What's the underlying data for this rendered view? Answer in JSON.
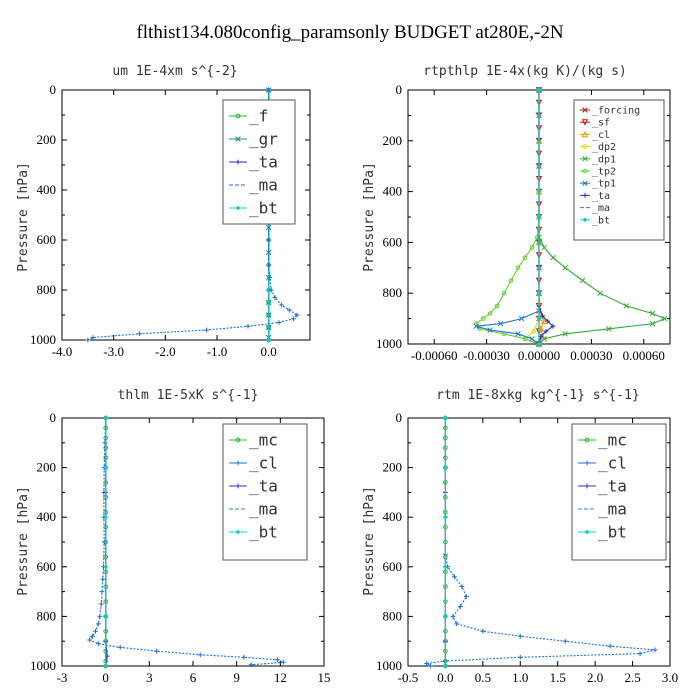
{
  "figure_title": "flthist134.080config_paramsonly  BUDGET at280E,-2N",
  "ylabel": "Pressure [hPa]",
  "chart_data": [
    {
      "type": "line",
      "title": "um  1E-4xm s^{-2}",
      "xlim": [
        -4.0,
        0.8
      ],
      "xticks": [
        -4.0,
        -3.0,
        -2.0,
        -1.0,
        0.0
      ],
      "xtick_labels": [
        "-4.0",
        "-3.0",
        "-2.0",
        "-1.0",
        "0.0"
      ],
      "ylim": [
        0,
        1000
      ],
      "yticks": [
        0,
        200,
        400,
        600,
        800,
        1000
      ],
      "legend": {
        "position": "top-right",
        "size": "large"
      },
      "series": [
        {
          "name": "_f",
          "color": "#22bb22",
          "marker": "o",
          "p": [
            0,
            50,
            100,
            150,
            200,
            300,
            400,
            500,
            600,
            700,
            800,
            850,
            900,
            950,
            1000
          ],
          "x": [
            0,
            0,
            0,
            0,
            0,
            0,
            0,
            0,
            0,
            0,
            0,
            0,
            0,
            0,
            0
          ]
        },
        {
          "name": "_gr",
          "color": "#228888",
          "marker": "x",
          "p": [
            0,
            60,
            120,
            180,
            250,
            350,
            450,
            550,
            650,
            750,
            850,
            900,
            950,
            990
          ],
          "x": [
            0,
            0,
            0.02,
            0.02,
            0.01,
            0,
            0,
            0,
            0,
            0,
            0,
            0,
            0,
            0
          ]
        },
        {
          "name": "_ta",
          "color": "#2222cc",
          "marker": "+",
          "p": [
            0,
            200,
            400,
            600,
            800,
            1000
          ],
          "x": [
            0,
            0,
            0,
            0,
            0,
            0
          ]
        },
        {
          "name": "_ma",
          "color": "#2266dd",
          "marker": "-",
          "p": [
            0,
            200,
            400,
            600,
            800,
            1000
          ],
          "x": [
            0,
            0,
            0,
            0,
            0,
            0
          ]
        },
        {
          "name": "_bt",
          "color": "#11cccc",
          "marker": "d",
          "p": [
            0,
            200,
            400,
            600,
            800,
            1000
          ],
          "x": [
            0,
            0,
            0,
            0,
            0,
            0
          ]
        },
        {
          "name": "",
          "color": "#1e6fd9",
          "marker": "+",
          "p": [
            0,
            100,
            200,
            300,
            400,
            500,
            600,
            700,
            750,
            800,
            830,
            860,
            880,
            900,
            915,
            930,
            945,
            960,
            975,
            990,
            1000
          ],
          "x": [
            0,
            0.02,
            0.01,
            0,
            0,
            0,
            0,
            0,
            0.02,
            0.05,
            0.12,
            0.25,
            0.4,
            0.55,
            0.48,
            0.2,
            -0.4,
            -1.2,
            -2.5,
            -3.4,
            -3.5
          ]
        }
      ]
    },
    {
      "type": "line",
      "title": "rtpthlp  1E-4x(kg K)/(kg s)",
      "xlim": [
        -0.00075,
        0.00075
      ],
      "xticks": [
        -0.0006,
        -0.0003,
        0.0,
        0.0003,
        0.0006
      ],
      "xtick_labels": [
        "-0.00060",
        "-0.00030",
        "0.00000",
        "0.00030",
        "0.00060"
      ],
      "ylim": [
        0,
        1000
      ],
      "yticks": [
        0,
        200,
        400,
        600,
        800,
        1000
      ],
      "legend": {
        "position": "top-right",
        "size": "small"
      },
      "series": [
        {
          "name": "_forcing",
          "color": "#aa2222",
          "marker": "x",
          "p": [
            0,
            100,
            200,
            300,
            400,
            500,
            600,
            700,
            800,
            900,
            1000
          ],
          "x": [
            0,
            0,
            0,
            0,
            0,
            0,
            0,
            0,
            0,
            0,
            0
          ]
        },
        {
          "name": "_sf",
          "color": "#cc1111",
          "marker": "v",
          "p": [
            0,
            50,
            100,
            150,
            200,
            250,
            300,
            350,
            400,
            450,
            500,
            550,
            600,
            650,
            700,
            750,
            800,
            850,
            900,
            950,
            1000
          ],
          "x": [
            0,
            0,
            0,
            0,
            0,
            0,
            0,
            0,
            0,
            0,
            0,
            0,
            0,
            0,
            0,
            0,
            0,
            0,
            0,
            0,
            0
          ]
        },
        {
          "name": "_cl",
          "color": "#ee9900",
          "marker": "^",
          "p": [
            0,
            200,
            400,
            600,
            800,
            880,
            910,
            940,
            970,
            1000
          ],
          "x": [
            0,
            0,
            0,
            0,
            0,
            1e-05,
            3e-05,
            1e-05,
            2e-05,
            0
          ]
        },
        {
          "name": "_dp2",
          "color": "#dddd00",
          "marker": "o",
          "p": [
            0,
            400,
            800,
            900,
            950,
            980,
            1000
          ],
          "x": [
            0,
            0,
            0,
            0,
            -3e-05,
            -8e-05,
            0
          ]
        },
        {
          "name": "_dp1",
          "color": "#33aa33",
          "marker": "x",
          "p": [
            0,
            500,
            580,
            620,
            660,
            700,
            750,
            800,
            850,
            880,
            900,
            920,
            940,
            960,
            980,
            1000
          ],
          "x": [
            0,
            0,
            0,
            3e-05,
            8e-05,
            0.00015,
            0.00025,
            0.00035,
            0.0005,
            0.00065,
            0.00072,
            0.00065,
            0.0004,
            0.00015,
            3e-05,
            0
          ]
        },
        {
          "name": "_tp2",
          "color": "#66cc33",
          "marker": "o",
          "p": [
            0,
            500,
            580,
            620,
            660,
            700,
            750,
            800,
            850,
            880,
            900,
            920,
            940,
            960,
            980,
            1000
          ],
          "x": [
            0,
            0,
            -1e-05,
            -4e-05,
            -8e-05,
            -0.00012,
            -0.00016,
            -0.0002,
            -0.00024,
            -0.00028,
            -0.00032,
            -0.00036,
            -0.00034,
            -0.0002,
            -8e-05,
            0
          ]
        },
        {
          "name": "_tp1",
          "color": "#2277cc",
          "marker": "x",
          "p": [
            0,
            800,
            870,
            900,
            920,
            930,
            945,
            960,
            980,
            1000
          ],
          "x": [
            0,
            0,
            0,
            -0.0001,
            -0.00022,
            -0.00036,
            -0.00028,
            -0.00012,
            -4e-05,
            0
          ]
        },
        {
          "name": "_ta",
          "color": "#2233cc",
          "marker": "+",
          "p": [
            0,
            850,
            890,
            910,
            930,
            950,
            970,
            1000
          ],
          "x": [
            0,
            0,
            2e-05,
            5e-05,
            8e-05,
            4e-05,
            1e-05,
            0
          ]
        },
        {
          "name": "_ma",
          "color": "#3377dd",
          "marker": "-",
          "p": [
            0,
            600,
            800,
            900,
            1000
          ],
          "x": [
            0,
            0,
            0,
            0,
            0
          ]
        },
        {
          "name": "_bt",
          "color": "#11cccc",
          "marker": "d",
          "p": [
            0,
            100,
            200,
            300,
            400,
            500,
            600,
            700,
            800,
            900,
            1000
          ],
          "x": [
            0,
            0,
            0,
            0,
            0,
            0,
            0,
            0,
            0,
            0,
            0
          ]
        }
      ]
    },
    {
      "type": "line",
      "title": "thlm  1E-5xK s^{-1}",
      "xlim": [
        -3,
        15
      ],
      "xticks": [
        -3,
        0,
        3,
        6,
        9,
        12,
        15
      ],
      "xtick_labels": [
        "-3",
        "0",
        "3",
        "6",
        "9",
        "12",
        "15"
      ],
      "ylim": [
        0,
        1000
      ],
      "yticks": [
        0,
        200,
        400,
        600,
        800,
        1000
      ],
      "legend": {
        "position": "top-right",
        "size": "large"
      },
      "series": [
        {
          "name": "_mc",
          "color": "#22bb22",
          "marker": "o",
          "p": [
            0,
            40,
            80,
            120,
            160,
            200,
            260,
            320,
            380,
            440,
            500,
            560,
            620,
            680,
            740,
            800,
            860,
            900,
            940,
            980,
            1000
          ],
          "x": [
            0,
            0,
            0,
            0,
            0,
            0,
            0,
            0,
            0,
            0,
            0,
            0,
            0,
            0,
            0,
            0,
            0,
            0,
            0,
            0,
            0
          ]
        },
        {
          "name": "_cl",
          "color": "#1e6fd9",
          "marker": "+",
          "p": [
            0,
            100,
            200,
            300,
            400,
            500,
            600,
            650,
            700,
            750,
            800,
            830,
            860,
            880,
            895,
            910,
            925,
            940,
            955,
            965,
            975,
            985,
            995
          ],
          "x": [
            0,
            -0.05,
            -0.1,
            -0.12,
            -0.12,
            -0.1,
            -0.15,
            -0.2,
            -0.25,
            -0.3,
            -0.4,
            -0.5,
            -0.7,
            -0.9,
            -1.1,
            -0.5,
            1.0,
            3.5,
            6.5,
            9.5,
            11.8,
            12.2,
            10.0
          ]
        },
        {
          "name": "_ta",
          "color": "#2233cc",
          "marker": "+",
          "p": [
            0,
            300,
            600,
            800,
            900,
            960,
            1000
          ],
          "x": [
            0,
            0,
            0,
            0,
            0,
            0.1,
            0
          ]
        },
        {
          "name": "_ma",
          "color": "#3377dd",
          "marker": "-",
          "p": [
            0,
            400,
            800,
            1000
          ],
          "x": [
            0,
            0,
            0,
            0
          ]
        },
        {
          "name": "_bt",
          "color": "#11cccc",
          "marker": "d",
          "p": [
            0,
            200,
            400,
            600,
            800,
            1000
          ],
          "x": [
            0,
            0,
            0,
            0,
            0,
            0
          ]
        }
      ]
    },
    {
      "type": "line",
      "title": "rtm  1E-8xkg kg^{-1} s^{-1}",
      "xlim": [
        -0.5,
        3.0
      ],
      "xticks": [
        -0.5,
        0.0,
        0.5,
        1.0,
        1.5,
        2.0,
        2.5,
        3.0
      ],
      "xtick_labels": [
        "-0.5",
        "0.0",
        "0.5",
        "1.0",
        "1.5",
        "2.0",
        "2.5",
        "3.0"
      ],
      "ylim": [
        0,
        1000
      ],
      "yticks": [
        0,
        200,
        400,
        600,
        800,
        1000
      ],
      "legend": {
        "position": "top-right",
        "size": "large"
      },
      "series": [
        {
          "name": "_mc",
          "color": "#22bb22",
          "marker": "o",
          "p": [
            0,
            40,
            80,
            120,
            160,
            200,
            260,
            320,
            380,
            440,
            500,
            560,
            620,
            680,
            740,
            800,
            860,
            900,
            940,
            980,
            1000
          ],
          "x": [
            0,
            0,
            0,
            0,
            0,
            0,
            0,
            0,
            0,
            0,
            0,
            0,
            0,
            0,
            0,
            0,
            0,
            0,
            0,
            0,
            0
          ]
        },
        {
          "name": "_cl",
          "color": "#1e6fd9",
          "marker": "+",
          "p": [
            0,
            200,
            400,
            550,
            600,
            640,
            680,
            720,
            760,
            800,
            830,
            860,
            880,
            900,
            920,
            935,
            950,
            965,
            980,
            990,
            1000
          ],
          "x": [
            0,
            0,
            0,
            0,
            0.03,
            0.12,
            0.22,
            0.28,
            0.2,
            0.1,
            0.15,
            0.5,
            1.0,
            1.6,
            2.2,
            2.8,
            2.6,
            1.0,
            0.0,
            -0.25,
            -0.2
          ]
        },
        {
          "name": "_ta",
          "color": "#2233cc",
          "marker": "+",
          "p": [
            0,
            300,
            600,
            900,
            1000
          ],
          "x": [
            0,
            0,
            0,
            0,
            0
          ]
        },
        {
          "name": "_ma",
          "color": "#3377dd",
          "marker": "-",
          "p": [
            0,
            400,
            800,
            1000
          ],
          "x": [
            0,
            0,
            0,
            0
          ]
        },
        {
          "name": "_bt",
          "color": "#11cccc",
          "marker": "d",
          "p": [
            0,
            200,
            400,
            600,
            800,
            1000
          ],
          "x": [
            0,
            0,
            0,
            0,
            0,
            0
          ]
        }
      ]
    }
  ]
}
